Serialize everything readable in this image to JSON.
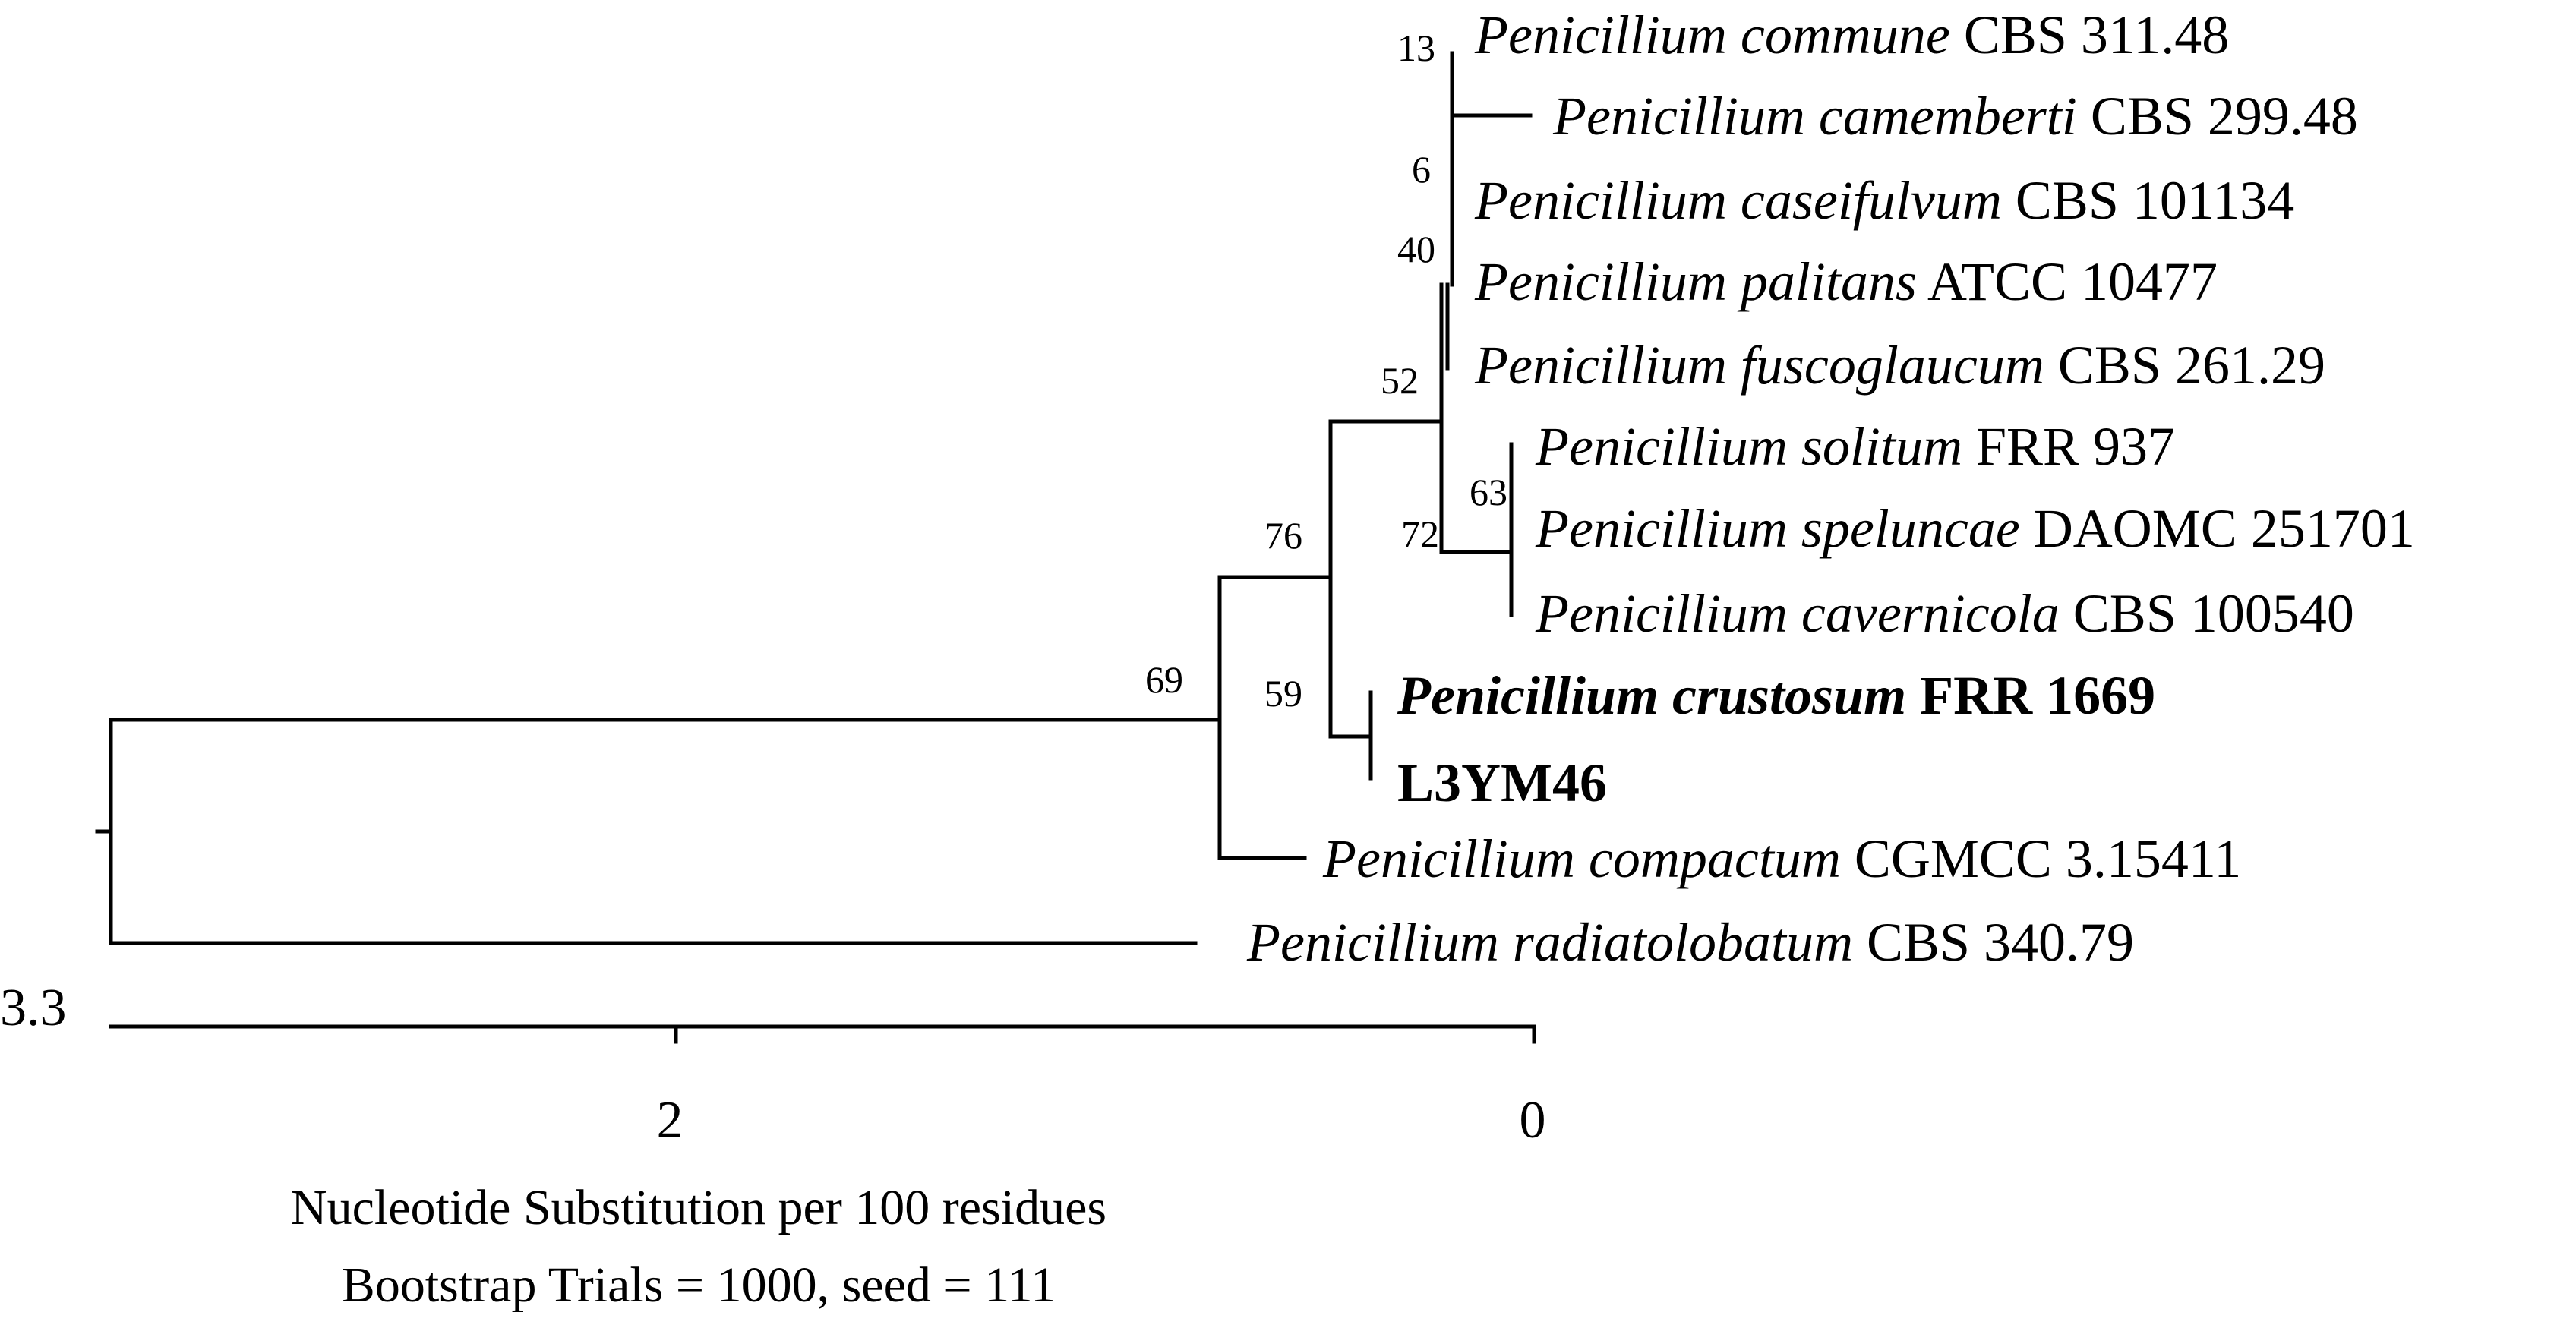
{
  "tree": {
    "leaves": [
      {
        "species": "Penicillium commune",
        "strain": "CBS 311.48",
        "bold": false
      },
      {
        "species": "Penicillium camemberti",
        "strain": "CBS 299.48",
        "bold": false
      },
      {
        "species": "Penicillium caseifulvum",
        "strain": "CBS 101134",
        "bold": false
      },
      {
        "species": "Penicillium palitans",
        "strain": "ATCC 10477",
        "bold": false
      },
      {
        "species": "Penicillium fuscoglaucum",
        "strain": "CBS 261.29",
        "bold": false
      },
      {
        "species": "Penicillium solitum",
        "strain": "FRR 937",
        "bold": false
      },
      {
        "species": "Penicillium speluncae",
        "strain": "DAOMC 251701",
        "bold": false
      },
      {
        "species": "Penicillium cavernicola",
        "strain": "CBS 100540",
        "bold": false
      },
      {
        "species": "Penicillium crustosum",
        "strain": "FRR 1669",
        "bold": true
      },
      {
        "species": "",
        "strain": "L3YM46",
        "bold": true
      },
      {
        "species": "Penicillium compactum",
        "strain": "CGMCC 3.15411",
        "bold": false
      },
      {
        "species": "Penicillium radiatolobatum",
        "strain": "CBS 340.79",
        "bold": false
      }
    ],
    "bootstrap": [
      "13",
      "6",
      "40",
      "52",
      "63",
      "72",
      "76",
      "59",
      "69"
    ]
  },
  "scale": {
    "start_label": "3.3",
    "tick_labels": [
      "2",
      "0"
    ],
    "xlabel": "Nucleotide Substitution per 100 residues",
    "caption": "Bootstrap Trials = 1000, seed = 111"
  }
}
